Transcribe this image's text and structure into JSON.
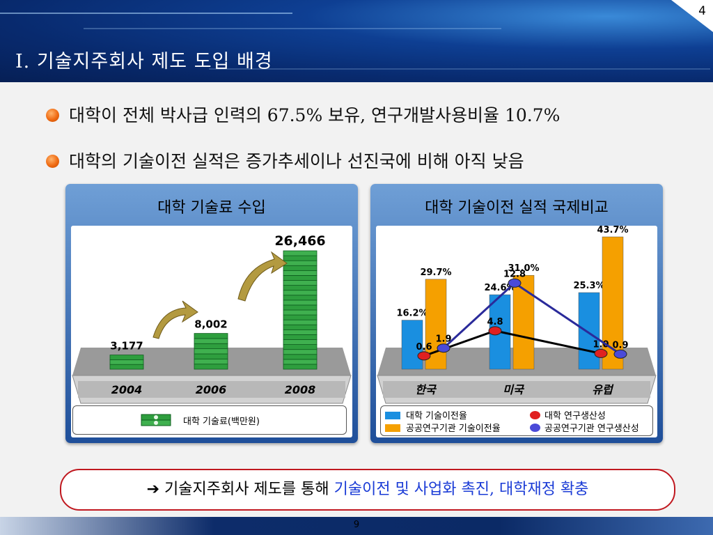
{
  "page": {
    "top_number": "4",
    "bottom_number": "9"
  },
  "header": {
    "title": "Ⅰ. 기술지주회사 제도 도입 배경"
  },
  "bullets": [
    "대학이 전체 박사급 인력의 67.5% 보유, 연구개발사용비율 10.7%",
    "대학의 기술이전 실적은 증가추세이나 선진국에 비해 아직 낮음"
  ],
  "left_panel": {
    "title": "대학 기술료 수입",
    "legend_label": "대학 기술료(백만원)"
  },
  "right_panel": {
    "title": "대학 기술이전 실적 국제비교",
    "legend": [
      {
        "label": "대학 기술이전율",
        "icon": "blue-bar-icon"
      },
      {
        "label": "대학 연구생산성",
        "icon": "red-dot-icon"
      },
      {
        "label": "공공연구기관 기술이전율",
        "icon": "orange-bar-icon"
      },
      {
        "label": "공공연구기관 연구생산성",
        "icon": "blue-dot-icon"
      }
    ]
  },
  "footer": {
    "arrow": "➔",
    "text_plain": "기술지주회사 제도를 통해 ",
    "text_highlight": "기술이전 및 사업화 촉진, 대학재정 확충"
  },
  "colors": {
    "blue_bar": "#1a8fe0",
    "orange_bar": "#f5a000",
    "red_dot": "#e02020",
    "blue_dot": "#4a4ad8",
    "highlight": "#1a3bd6",
    "money_green": "#2e9e3e"
  },
  "chart_data": [
    {
      "type": "bar",
      "title": "대학 기술료 수입",
      "categories": [
        "2004",
        "2006",
        "2008"
      ],
      "values": [
        3177,
        8002,
        26466
      ],
      "value_labels": [
        "3,177",
        "8,002",
        "26,466"
      ],
      "series": [
        {
          "name": "대학 기술료(백만원)",
          "values": [
            3177,
            8002,
            26466
          ]
        }
      ]
    },
    {
      "type": "bar",
      "title": "대학 기술이전 실적 국제비교",
      "categories": [
        "한국",
        "미국",
        "유럽"
      ],
      "series": [
        {
          "name": "대학 기술이전율",
          "kind": "bar",
          "values": [
            16.2,
            24.6,
            25.3
          ],
          "labels": [
            "16.2%",
            "24.6%",
            "25.3%"
          ]
        },
        {
          "name": "공공연구기관 기술이전율",
          "kind": "bar",
          "values": [
            29.7,
            31.0,
            43.7
          ],
          "labels": [
            "29.7%",
            "31.0%",
            "43.7%"
          ]
        },
        {
          "name": "대학 연구생산성",
          "kind": "line",
          "values": [
            0.6,
            4.8,
            1.0
          ],
          "labels": [
            "0.6",
            "4.8",
            "1.0"
          ]
        },
        {
          "name": "공공연구기관 연구생산성",
          "kind": "line",
          "values": [
            1.9,
            12.8,
            0.9
          ],
          "labels": [
            "1.9",
            "12.8",
            "0.9"
          ]
        }
      ]
    }
  ]
}
